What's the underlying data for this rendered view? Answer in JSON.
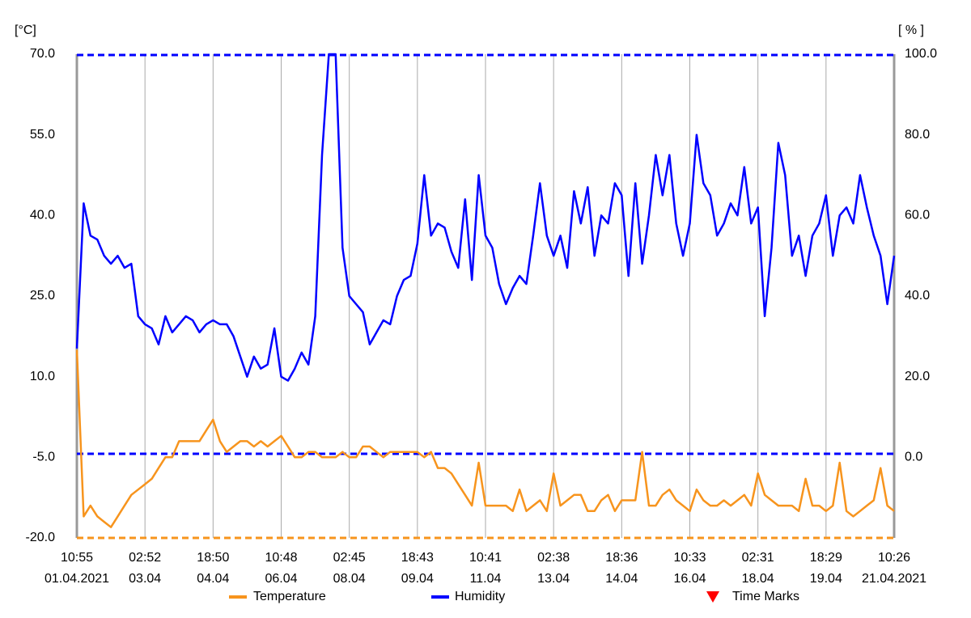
{
  "chart_data": {
    "type": "line",
    "y_unit": "[°C]",
    "y2_unit": "[ % ]",
    "xlim": [
      0,
      12
    ],
    "xticks": [
      {
        "value": 0,
        "label": [
          "10:55",
          "01.04.2021"
        ]
      },
      {
        "value": 1,
        "label": [
          "02:52",
          "03.04"
        ]
      },
      {
        "value": 2,
        "label": [
          "18:50",
          "04.04"
        ]
      },
      {
        "value": 3,
        "label": [
          "10:48",
          "06.04"
        ]
      },
      {
        "value": 4,
        "label": [
          "02:45",
          "08.04"
        ]
      },
      {
        "value": 5,
        "label": [
          "18:43",
          "09.04"
        ]
      },
      {
        "value": 6,
        "label": [
          "10:41",
          "11.04"
        ]
      },
      {
        "value": 7,
        "label": [
          "02:38",
          "13.04"
        ]
      },
      {
        "value": 8,
        "label": [
          "18:36",
          "14.04"
        ]
      },
      {
        "value": 9,
        "label": [
          "10:33",
          "16.04"
        ]
      },
      {
        "value": 10,
        "label": [
          "02:31",
          "18.04"
        ]
      },
      {
        "value": 11,
        "label": [
          "18:29",
          "19.04"
        ]
      },
      {
        "value": 12,
        "label": [
          "10:26",
          "21.04.2021"
        ]
      }
    ],
    "ylim": [
      -20,
      70
    ],
    "yticks": [
      {
        "value": -20,
        "label": "-20.0"
      },
      {
        "value": -5,
        "label": "-5.0"
      },
      {
        "value": 10,
        "label": "10.0"
      },
      {
        "value": 25,
        "label": "25.0"
      },
      {
        "value": 40,
        "label": "40.0"
      },
      {
        "value": 55,
        "label": "55.0"
      },
      {
        "value": 70,
        "label": "70.0"
      }
    ],
    "y2lim": [
      -20,
      100
    ],
    "y2ticks": [
      {
        "value": 0,
        "label": "0.0"
      },
      {
        "value": 20,
        "label": "20.0"
      },
      {
        "value": 40,
        "label": "40.0"
      },
      {
        "value": 60,
        "label": "60.0"
      },
      {
        "value": 80,
        "label": "80.0"
      },
      {
        "value": 100,
        "label": "100.0"
      }
    ],
    "x": [
      0,
      0.1,
      0.2,
      0.3,
      0.4,
      0.5,
      0.6,
      0.7,
      0.8,
      0.9,
      1,
      1.1,
      1.2,
      1.3,
      1.4,
      1.5,
      1.6,
      1.7,
      1.8,
      1.9,
      2,
      2.1,
      2.2,
      2.3,
      2.4,
      2.5,
      2.6,
      2.7,
      2.8,
      2.9,
      3,
      3.1,
      3.2,
      3.3,
      3.4,
      3.5,
      3.6,
      3.7,
      3.8,
      3.9,
      4,
      4.1,
      4.2,
      4.3,
      4.4,
      4.5,
      4.6,
      4.7,
      4.8,
      4.9,
      5,
      5.1,
      5.2,
      5.3,
      5.4,
      5.5,
      5.6,
      5.7,
      5.8,
      5.9,
      6,
      6.1,
      6.2,
      6.3,
      6.4,
      6.5,
      6.6,
      6.7,
      6.8,
      6.9,
      7,
      7.1,
      7.2,
      7.3,
      7.4,
      7.5,
      7.6,
      7.7,
      7.8,
      7.9,
      8,
      8.1,
      8.2,
      8.3,
      8.4,
      8.5,
      8.6,
      8.7,
      8.8,
      8.9,
      9,
      9.1,
      9.2,
      9.3,
      9.4,
      9.5,
      9.6,
      9.7,
      9.8,
      9.9,
      10,
      10.1,
      10.2,
      10.3,
      10.4,
      10.5,
      10.6,
      10.7,
      10.8,
      10.9,
      11,
      11.1,
      11.2,
      11.3,
      11.4,
      11.5,
      11.6,
      11.7,
      11.8,
      11.9,
      12
    ],
    "series": [
      {
        "name": "Temperature",
        "color": "#f7941d",
        "values": [
          15,
          -16,
          -14,
          -16,
          -17,
          -18,
          -16,
          -14,
          -12,
          -11,
          -10,
          -9,
          -7,
          -5,
          -5,
          -2,
          -2,
          -2,
          -2,
          0,
          2,
          -2,
          -4,
          -3,
          -2,
          -2,
          -3,
          -2,
          -3,
          -2,
          -1,
          -3,
          -5,
          -5,
          -4,
          -4,
          -5,
          -5,
          -5,
          -4,
          -5,
          -5,
          -3,
          -3,
          -4,
          -5,
          -4,
          -4,
          -4,
          -4,
          -4,
          -5,
          -4,
          -7,
          -7,
          -8,
          -10,
          -12,
          -14,
          -6,
          -14,
          -14,
          -14,
          -14,
          -15,
          -11,
          -15,
          -14,
          -13,
          -15,
          -8,
          -14,
          -13,
          -12,
          -12,
          -15,
          -15,
          -13,
          -12,
          -15,
          -13,
          -13,
          -13,
          -4,
          -14,
          -14,
          -12,
          -11,
          -13,
          -14,
          -15,
          -11,
          -13,
          -14,
          -14,
          -13,
          -14,
          -13,
          -12,
          -14,
          -8,
          -12,
          -13,
          -14,
          -14,
          -14,
          -15,
          -9,
          -14,
          -14,
          -15,
          -14,
          -6,
          -15,
          -16,
          -15,
          -14,
          -13,
          -7,
          -14,
          -15
        ]
      },
      {
        "name": "Humidity",
        "color": "#0000ff",
        "axis": "y2",
        "values": [
          27,
          63,
          55,
          54,
          50,
          48,
          50,
          47,
          48,
          35,
          33,
          32,
          28,
          35,
          31,
          33,
          35,
          34,
          31,
          33,
          34,
          33,
          33,
          30,
          25,
          20,
          25,
          22,
          23,
          32,
          20,
          19,
          22,
          26,
          23,
          35,
          75,
          100,
          100,
          52,
          40,
          38,
          36,
          28,
          31,
          34,
          33,
          40,
          44,
          45,
          53,
          70,
          55,
          58,
          57,
          51,
          47,
          64,
          44,
          70,
          55,
          52,
          43,
          38,
          42,
          45,
          43,
          55,
          68,
          55,
          50,
          55,
          47,
          66,
          58,
          67,
          50,
          60,
          58,
          68,
          65,
          45,
          68,
          48,
          60,
          75,
          65,
          75,
          58,
          50,
          58,
          80,
          68,
          65,
          55,
          58,
          63,
          60,
          72,
          58,
          62,
          35,
          52,
          78,
          70,
          50,
          55,
          45,
          55,
          58,
          65,
          50,
          60,
          62,
          58,
          70,
          62,
          55,
          50,
          38,
          50
        ]
      }
    ],
    "time_marks": {
      "name": "Time Marks",
      "color": "#ff0000"
    }
  }
}
